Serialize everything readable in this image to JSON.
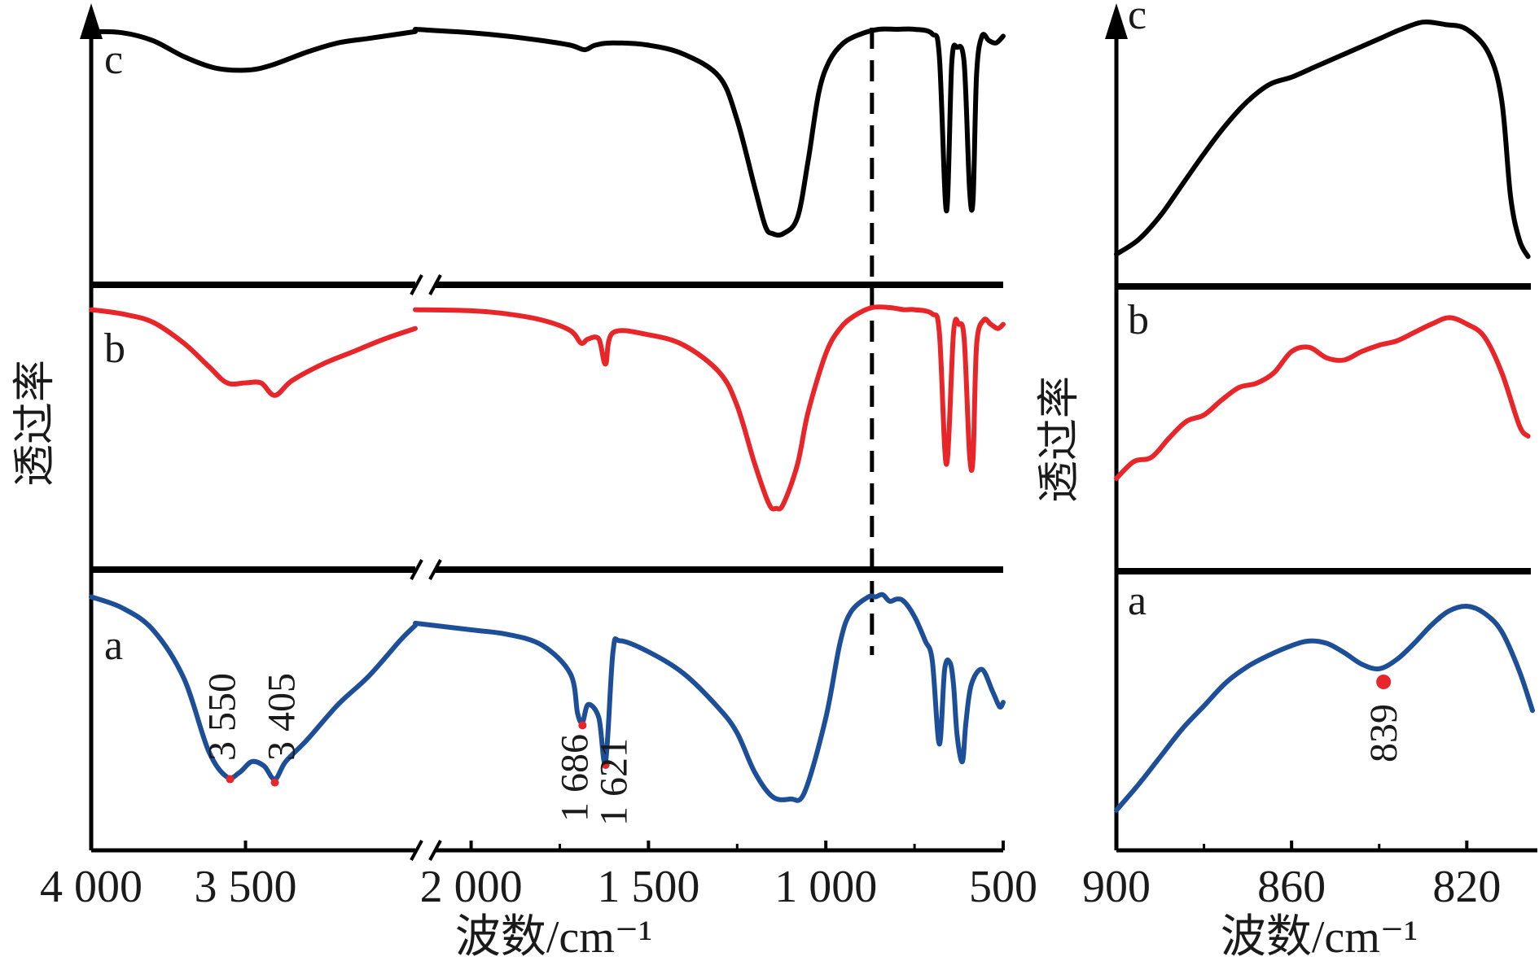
{
  "chart_data": [
    {
      "type": "line",
      "xlabel": "波数/cm⁻¹",
      "ylabel": "透过率",
      "x_axis_reversed": true,
      "x_axis_break": [
        2100,
        1900
      ],
      "xlim": [
        4000,
        500
      ],
      "xticks": [
        {
          "value": 4000,
          "label": "4 000"
        },
        {
          "value": 3500,
          "label": "3 500"
        },
        {
          "value": 2000,
          "label": "2 000"
        },
        {
          "value": 1500,
          "label": "1 500"
        },
        {
          "value": 1000,
          "label": "1 000"
        },
        {
          "value": 500,
          "label": "500"
        }
      ],
      "reference_line_x": 870,
      "series": [
        {
          "name": "c",
          "color": "#000000",
          "points": [
            [
              4000,
              0.99
            ],
            [
              3900,
              0.985
            ],
            [
              3800,
              0.95
            ],
            [
              3700,
              0.88
            ],
            [
              3600,
              0.83
            ],
            [
              3500,
              0.82
            ],
            [
              3420,
              0.84
            ],
            [
              3300,
              0.9
            ],
            [
              3200,
              0.94
            ],
            [
              3100,
              0.96
            ],
            [
              3000,
              0.98
            ],
            [
              2950,
              0.99
            ],
            [
              2100,
              1.0
            ],
            [
              2000,
              0.985
            ],
            [
              1900,
              0.97
            ],
            [
              1800,
              0.95
            ],
            [
              1720,
              0.93
            ],
            [
              1680,
              0.91
            ],
            [
              1650,
              0.93
            ],
            [
              1600,
              0.94
            ],
            [
              1500,
              0.93
            ],
            [
              1400,
              0.89
            ],
            [
              1300,
              0.79
            ],
            [
              1250,
              0.6
            ],
            [
              1200,
              0.3
            ],
            [
              1170,
              0.13
            ],
            [
              1150,
              0.1
            ],
            [
              1120,
              0.1
            ],
            [
              1080,
              0.17
            ],
            [
              1050,
              0.42
            ],
            [
              1020,
              0.72
            ],
            [
              990,
              0.86
            ],
            [
              950,
              0.94
            ],
            [
              900,
              0.98
            ],
            [
              850,
              1.0
            ],
            [
              800,
              1.0
            ],
            [
              750,
              1.0
            ],
            [
              700,
              0.98
            ],
            [
              680,
              0.88
            ],
            [
              660,
              0.2
            ],
            [
              645,
              0.85
            ],
            [
              630,
              0.92
            ],
            [
              610,
              0.85
            ],
            [
              595,
              0.3
            ],
            [
              585,
              0.25
            ],
            [
              575,
              0.8
            ],
            [
              560,
              0.97
            ],
            [
              540,
              0.95
            ],
            [
              520,
              0.94
            ],
            [
              500,
              0.97
            ]
          ],
          "annotations": []
        },
        {
          "name": "b",
          "color": "#e8262a",
          "points": [
            [
              4000,
              0.99
            ],
            [
              3900,
              0.97
            ],
            [
              3800,
              0.93
            ],
            [
              3700,
              0.83
            ],
            [
              3620,
              0.72
            ],
            [
              3560,
              0.64
            ],
            [
              3500,
              0.64
            ],
            [
              3450,
              0.64
            ],
            [
              3405,
              0.58
            ],
            [
              3350,
              0.65
            ],
            [
              3250,
              0.73
            ],
            [
              3150,
              0.79
            ],
            [
              3050,
              0.85
            ],
            [
              2950,
              0.9
            ],
            [
              2100,
              0.99
            ],
            [
              2000,
              0.985
            ],
            [
              1900,
              0.97
            ],
            [
              1800,
              0.94
            ],
            [
              1720,
              0.89
            ],
            [
              1690,
              0.83
            ],
            [
              1670,
              0.85
            ],
            [
              1640,
              0.85
            ],
            [
              1621,
              0.73
            ],
            [
              1600,
              0.88
            ],
            [
              1500,
              0.87
            ],
            [
              1400,
              0.82
            ],
            [
              1300,
              0.69
            ],
            [
              1250,
              0.53
            ],
            [
              1200,
              0.25
            ],
            [
              1160,
              0.06
            ],
            [
              1140,
              0.04
            ],
            [
              1120,
              0.06
            ],
            [
              1080,
              0.25
            ],
            [
              1050,
              0.5
            ],
            [
              1000,
              0.78
            ],
            [
              960,
              0.9
            ],
            [
              920,
              0.96
            ],
            [
              870,
              1.0
            ],
            [
              820,
              1.0
            ],
            [
              780,
              0.99
            ],
            [
              750,
              0.99
            ],
            [
              700,
              0.97
            ],
            [
              680,
              0.88
            ],
            [
              660,
              0.25
            ],
            [
              640,
              0.88
            ],
            [
              625,
              0.92
            ],
            [
              610,
              0.85
            ],
            [
              595,
              0.3
            ],
            [
              585,
              0.28
            ],
            [
              575,
              0.82
            ],
            [
              555,
              0.94
            ],
            [
              535,
              0.92
            ],
            [
              515,
              0.9
            ],
            [
              500,
              0.92
            ]
          ],
          "annotations": []
        },
        {
          "name": "a",
          "color": "#1d4f99",
          "points": [
            [
              4000,
              0.95
            ],
            [
              3900,
              0.9
            ],
            [
              3800,
              0.8
            ],
            [
              3700,
              0.58
            ],
            [
              3620,
              0.25
            ],
            [
              3560,
              0.13
            ],
            [
              3520,
              0.15
            ],
            [
              3480,
              0.2
            ],
            [
              3440,
              0.18
            ],
            [
              3405,
              0.12
            ],
            [
              3370,
              0.2
            ],
            [
              3300,
              0.3
            ],
            [
              3200,
              0.46
            ],
            [
              3100,
              0.59
            ],
            [
              3000,
              0.75
            ],
            [
              2950,
              0.82
            ],
            [
              2100,
              0.83
            ],
            [
              2000,
              0.8
            ],
            [
              1900,
              0.78
            ],
            [
              1800,
              0.73
            ],
            [
              1720,
              0.6
            ],
            [
              1700,
              0.42
            ],
            [
              1686,
              0.38
            ],
            [
              1670,
              0.46
            ],
            [
              1640,
              0.4
            ],
            [
              1621,
              0.2
            ],
            [
              1600,
              0.7
            ],
            [
              1580,
              0.75
            ],
            [
              1500,
              0.7
            ],
            [
              1400,
              0.6
            ],
            [
              1300,
              0.44
            ],
            [
              1250,
              0.33
            ],
            [
              1200,
              0.15
            ],
            [
              1150,
              0.04
            ],
            [
              1100,
              0.03
            ],
            [
              1060,
              0.06
            ],
            [
              1000,
              0.4
            ],
            [
              960,
              0.74
            ],
            [
              930,
              0.88
            ],
            [
              880,
              0.95
            ],
            [
              860,
              0.95
            ],
            [
              840,
              0.96
            ],
            [
              820,
              0.93
            ],
            [
              800,
              0.94
            ],
            [
              780,
              0.93
            ],
            [
              750,
              0.86
            ],
            [
              720,
              0.75
            ],
            [
              700,
              0.66
            ],
            [
              680,
              0.28
            ],
            [
              665,
              0.62
            ],
            [
              650,
              0.65
            ],
            [
              640,
              0.55
            ],
            [
              630,
              0.32
            ],
            [
              615,
              0.2
            ],
            [
              605,
              0.38
            ],
            [
              590,
              0.55
            ],
            [
              560,
              0.62
            ],
            [
              530,
              0.52
            ],
            [
              510,
              0.45
            ],
            [
              500,
              0.47
            ]
          ],
          "annotations": [
            {
              "x": 3550,
              "label": "3 550"
            },
            {
              "x": 3405,
              "label": "3 405"
            },
            {
              "x": 1686,
              "label": "1 686"
            },
            {
              "x": 1621,
              "label": "1 621"
            }
          ]
        }
      ]
    },
    {
      "type": "line",
      "xlabel": "波数/cm⁻¹",
      "ylabel": "透过率",
      "x_axis_reversed": true,
      "xlim": [
        900,
        805
      ],
      "xticks": [
        {
          "value": 900,
          "label": "900"
        },
        {
          "value": 860,
          "label": "860"
        },
        {
          "value": 820,
          "label": "820"
        }
      ],
      "minor_xticks": [
        880,
        840
      ],
      "series": [
        {
          "name": "c",
          "color": "#000000",
          "points": [
            [
              900,
              0.06
            ],
            [
              895,
              0.12
            ],
            [
              890,
              0.22
            ],
            [
              885,
              0.35
            ],
            [
              880,
              0.48
            ],
            [
              875,
              0.6
            ],
            [
              870,
              0.7
            ],
            [
              865,
              0.77
            ],
            [
              860,
              0.8
            ],
            [
              855,
              0.84
            ],
            [
              850,
              0.88
            ],
            [
              845,
              0.92
            ],
            [
              840,
              0.96
            ],
            [
              835,
              1.0
            ],
            [
              830,
              1.03
            ],
            [
              825,
              1.02
            ],
            [
              820,
              1.0
            ],
            [
              815,
              0.9
            ],
            [
              812,
              0.7
            ],
            [
              810,
              0.3
            ],
            [
              808,
              0.12
            ],
            [
              806,
              0.05
            ]
          ],
          "annotations": []
        },
        {
          "name": "b",
          "color": "#e8262a",
          "points": [
            [
              900,
              0.2
            ],
            [
              896,
              0.28
            ],
            [
              892,
              0.3
            ],
            [
              888,
              0.39
            ],
            [
              884,
              0.47
            ],
            [
              880,
              0.5
            ],
            [
              876,
              0.57
            ],
            [
              872,
              0.63
            ],
            [
              868,
              0.65
            ],
            [
              864,
              0.7
            ],
            [
              860,
              0.8
            ],
            [
              856,
              0.82
            ],
            [
              852,
              0.77
            ],
            [
              848,
              0.76
            ],
            [
              844,
              0.8
            ],
            [
              840,
              0.83
            ],
            [
              836,
              0.85
            ],
            [
              832,
              0.89
            ],
            [
              828,
              0.93
            ],
            [
              824,
              0.96
            ],
            [
              820,
              0.93
            ],
            [
              816,
              0.87
            ],
            [
              812,
              0.7
            ],
            [
              808,
              0.45
            ],
            [
              806,
              0.4
            ]
          ],
          "annotations": []
        },
        {
          "name": "a",
          "color": "#1d4f99",
          "points": [
            [
              900,
              0.05
            ],
            [
              895,
              0.16
            ],
            [
              890,
              0.28
            ],
            [
              885,
              0.4
            ],
            [
              880,
              0.5
            ],
            [
              875,
              0.6
            ],
            [
              870,
              0.67
            ],
            [
              865,
              0.72
            ],
            [
              860,
              0.76
            ],
            [
              856,
              0.78
            ],
            [
              852,
              0.77
            ],
            [
              848,
              0.73
            ],
            [
              844,
              0.68
            ],
            [
              840,
              0.66
            ],
            [
              836,
              0.7
            ],
            [
              832,
              0.77
            ],
            [
              828,
              0.85
            ],
            [
              824,
              0.91
            ],
            [
              820,
              0.93
            ],
            [
              816,
              0.9
            ],
            [
              812,
              0.82
            ],
            [
              808,
              0.65
            ],
            [
              805,
              0.48
            ]
          ],
          "annotations": [
            {
              "x": 839,
              "label": "839"
            }
          ]
        }
      ]
    }
  ]
}
